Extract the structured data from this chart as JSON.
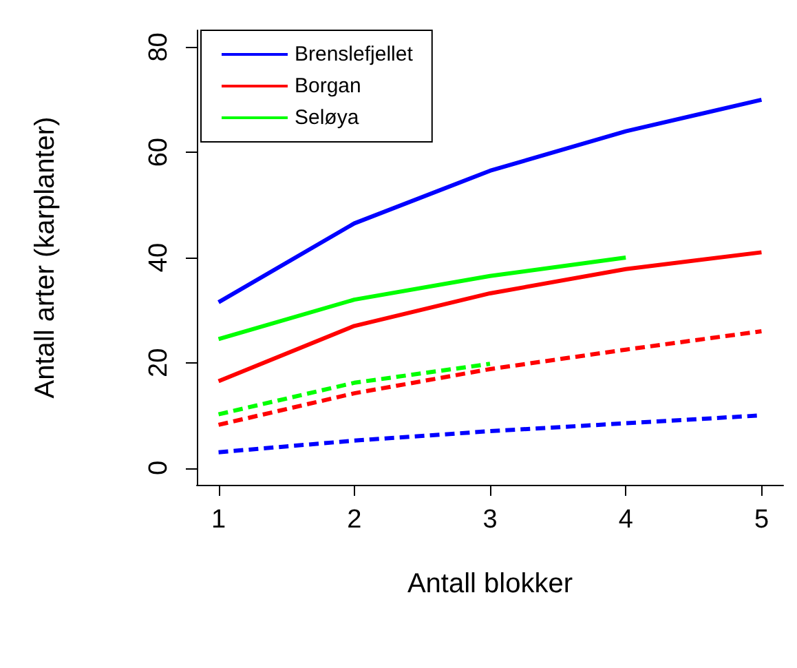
{
  "chart_data": {
    "type": "line",
    "xlabel": "Antall blokker",
    "ylabel": "Antall arter (karplanter)",
    "x": [
      1,
      2,
      3,
      4,
      5
    ],
    "series": [
      {
        "name": "Brenslefjellet",
        "color": "#0000ff",
        "values": [
          31.5,
          46.5,
          56.5,
          64,
          70
        ],
        "line_style": "solid"
      },
      {
        "name": "Borgan",
        "color": "#ff0000",
        "values": [
          16.5,
          27,
          33.2,
          37.8,
          41
        ],
        "line_style": "solid"
      },
      {
        "name": "Seløya",
        "color": "#00ff00",
        "values": [
          24.5,
          32,
          36.5,
          40,
          null
        ],
        "line_style": "solid"
      },
      {
        "color": "#00ff00",
        "values": [
          10.2,
          16.2,
          19.8,
          null,
          null
        ],
        "line_style": "dashed"
      },
      {
        "color": "#ff0000",
        "values": [
          8.2,
          14.2,
          18.8,
          22.5,
          26
        ],
        "line_style": "dashed"
      },
      {
        "color": "#0000ff",
        "values": [
          3,
          5.2,
          7,
          8.5,
          10
        ],
        "line_style": "dashed"
      }
    ],
    "xlim": [
      0.84,
      5.16
    ],
    "xticks": [
      1,
      2,
      3,
      4,
      5
    ],
    "ylim": [
      -3.2,
      83.2
    ],
    "yticks": [
      0,
      20,
      40,
      60,
      80
    ],
    "grid": false,
    "legend": "top left",
    "marker": "none"
  }
}
